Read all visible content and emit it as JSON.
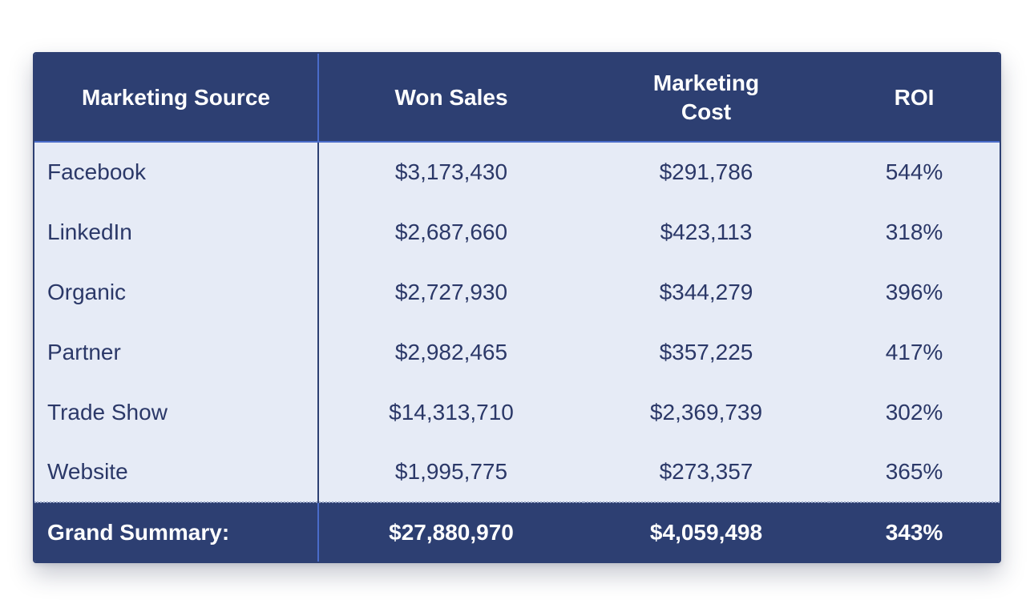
{
  "chart_data": {
    "type": "table",
    "columns": [
      "Marketing Source",
      "Won Sales",
      "Marketing Cost",
      "ROI"
    ],
    "rows": [
      {
        "source": "Facebook",
        "won_sales": "$3,173,430",
        "marketing_cost": "$291,786",
        "roi": "544%"
      },
      {
        "source": "LinkedIn",
        "won_sales": "$2,687,660",
        "marketing_cost": "$423,113",
        "roi": "318%"
      },
      {
        "source": "Organic",
        "won_sales": "$2,727,930",
        "marketing_cost": "$344,279",
        "roi": "396%"
      },
      {
        "source": "Partner",
        "won_sales": "$2,982,465",
        "marketing_cost": "$357,225",
        "roi": "417%"
      },
      {
        "source": "Trade Show",
        "won_sales": "$14,313,710",
        "marketing_cost": "$2,369,739",
        "roi": "302%"
      },
      {
        "source": "Website",
        "won_sales": "$1,995,775",
        "marketing_cost": "$273,357",
        "roi": "365%"
      }
    ],
    "summary": {
      "label": "Grand Summary:",
      "won_sales": "$27,880,970",
      "marketing_cost": "$4,059,498",
      "roi": "343%"
    }
  },
  "colors": {
    "header_bg": "#2d3f72",
    "body_bg": "#e6ebf6",
    "body_text": "#2b3868",
    "divider": "#4a6cc9"
  }
}
